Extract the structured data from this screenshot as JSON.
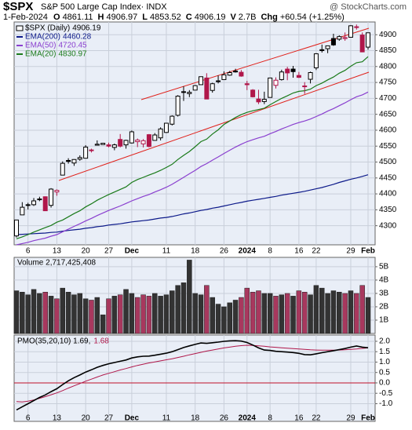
{
  "header": {
    "title": "$SPX",
    "subtitle": "S&P 500 Large Cap Index· INDX",
    "source": "@ StockCharts.com",
    "date": "1-Feb-2024",
    "stats": [
      {
        "label": "O",
        "value": "4861.11"
      },
      {
        "label": "H",
        "value": "4906.97"
      },
      {
        "label": "L",
        "value": "4853.52"
      },
      {
        "label": "C",
        "value": "4906.19"
      },
      {
        "label": "V",
        "value": "2.7B"
      },
      {
        "label": "Chg",
        "value": "+60.54 (+1.25%)"
      }
    ]
  },
  "chart_data": [
    {
      "type": "candlestick",
      "name": "$SPX (Daily)",
      "legend_value": "4906.19",
      "categories": [
        null,
        null,
        "6",
        null,
        null,
        null,
        null,
        "13",
        null,
        null,
        null,
        null,
        "20",
        null,
        null,
        null,
        "27",
        null,
        null,
        null,
        "Dec",
        null,
        null,
        null,
        null,
        null,
        "11",
        null,
        null,
        null,
        null,
        "18",
        null,
        null,
        null,
        null,
        "26",
        null,
        null,
        null,
        "2024",
        null,
        null,
        null,
        "8",
        null,
        null,
        null,
        null,
        "16",
        null,
        null,
        "22",
        null,
        null,
        null,
        null,
        null,
        "29",
        null,
        null,
        "Feb"
      ],
      "open": [
        4268,
        4334,
        4364,
        4366,
        4384,
        4391,
        4364,
        4406,
        4459,
        4505,
        4497,
        4509,
        4512,
        4538,
        4553,
        4555,
        4554,
        4546,
        4571,
        4554,
        4560,
        4564,
        4557,
        4586,
        4568,
        4576,
        4593,
        4619,
        4647,
        4721,
        4715,
        4726,
        4743,
        4764,
        4725,
        4754,
        4759,
        4773,
        4786,
        4782,
        4746,
        4726,
        4698,
        4690,
        4703,
        4741,
        4759,
        4792,
        4792,
        4772,
        4739,
        4760,
        4796,
        4853,
        4856,
        4888,
        4886,
        4888,
        4892,
        4925,
        4899,
        4861
      ],
      "high": [
        4319,
        4374,
        4372,
        4387,
        4391,
        4392,
        4418,
        4414,
        4502,
        4512,
        4509,
        4521,
        4553,
        4542,
        4568,
        4560,
        4561,
        4558,
        4588,
        4570,
        4599,
        4574,
        4572,
        4588,
        4591,
        4609,
        4623,
        4647,
        4710,
        4738,
        4726,
        4742,
        4769,
        4779,
        4749,
        4772,
        4785,
        4786,
        4793,
        4789,
        4755,
        4729,
        4727,
        4721,
        4765,
        4766,
        4790,
        4799,
        4802,
        4783,
        4751,
        4784,
        4842,
        4869,
        4866,
        4903,
        4898,
        4907,
        4930,
        4932,
        4907,
        4907
      ],
      "low": [
        4263,
        4334,
        4351,
        4362,
        4377,
        4346,
        4357,
        4394,
        4459,
        4495,
        4488,
        4504,
        4511,
        4530,
        4552,
        4554,
        4546,
        4537,
        4546,
        4542,
        4558,
        4547,
        4546,
        4546,
        4568,
        4568,
        4591,
        4615,
        4643,
        4692,
        4704,
        4726,
        4743,
        4698,
        4718,
        4747,
        4759,
        4771,
        4781,
        4768,
        4726,
        4703,
        4682,
        4682,
        4703,
        4731,
        4756,
        4757,
        4765,
        4764,
        4714,
        4747,
        4789,
        4844,
        4842,
        4865,
        4881,
        4881,
        4892,
        4916,
        4845,
        4853
      ],
      "close": [
        4318,
        4358,
        4366,
        4378,
        4383,
        4347,
        4415,
        4411,
        4496,
        4502,
        4508,
        4514,
        4547,
        4538,
        4556,
        4559,
        4550,
        4554,
        4550,
        4568,
        4595,
        4569,
        4567,
        4549,
        4585,
        4604,
        4622,
        4644,
        4707,
        4719,
        4719,
        4740,
        4768,
        4698,
        4746,
        4755,
        4774,
        4781,
        4783,
        4770,
        4743,
        4705,
        4689,
        4697,
        4764,
        4757,
        4783,
        4780,
        4784,
        4766,
        4739,
        4781,
        4840,
        4850,
        4865,
        4868,
        4894,
        4891,
        4928,
        4925,
        4846,
        4906
      ],
      "up_color": "#000000",
      "down_color": "#b0174a",
      "series": [
        {
          "name": "EMA(200)",
          "legend_value": "4460.28",
          "color": "#0d1a8a",
          "values": [
            4272,
            4273,
            4274,
            4275,
            4276,
            4277,
            4279,
            4280,
            4283,
            4285,
            4287,
            4289,
            4292,
            4294,
            4297,
            4299,
            4302,
            4304,
            4306,
            4309,
            4312,
            4314,
            4316,
            4318,
            4321,
            4324,
            4326,
            4329,
            4333,
            4337,
            4340,
            4344,
            4348,
            4351,
            4355,
            4358,
            4362,
            4366,
            4370,
            4373,
            4377,
            4380,
            4383,
            4386,
            4389,
            4392,
            4396,
            4399,
            4402,
            4405,
            4408,
            4412,
            4416,
            4420,
            4425,
            4430,
            4436,
            4441,
            4446,
            4450,
            4455,
            4460
          ]
        },
        {
          "name": "EMA(50)",
          "legend_value": "4720.45",
          "color": "#8a3fcf",
          "values": [
            4240,
            4244,
            4248,
            4253,
            4257,
            4261,
            4267,
            4272,
            4281,
            4289,
            4298,
            4306,
            4315,
            4323,
            4332,
            4340,
            4348,
            4355,
            4362,
            4370,
            4378,
            4385,
            4392,
            4398,
            4406,
            4413,
            4421,
            4430,
            4441,
            4452,
            4463,
            4474,
            4486,
            4495,
            4506,
            4516,
            4527,
            4537,
            4547,
            4556,
            4564,
            4570,
            4576,
            4581,
            4589,
            4596,
            4604,
            4611,
            4618,
            4624,
            4629,
            4635,
            4643,
            4651,
            4660,
            4668,
            4677,
            4686,
            4696,
            4705,
            4711,
            4720
          ]
        },
        {
          "name": "EMA(20)",
          "legend_value": "4830.97",
          "color": "#1a7a1a",
          "values": [
            4259,
            4265,
            4272,
            4280,
            4287,
            4294,
            4301,
            4311,
            4318,
            4328,
            4338,
            4347,
            4359,
            4369,
            4380,
            4389,
            4398,
            4406,
            4414,
            4422,
            4436,
            4445,
            4452,
            4459,
            4466,
            4474,
            4483,
            4493,
            4508,
            4521,
            4533,
            4548,
            4564,
            4572,
            4588,
            4601,
            4618,
            4629,
            4640,
            4649,
            4656,
            4661,
            4665,
            4669,
            4680,
            4690,
            4700,
            4708,
            4717,
            4722,
            4724,
            4729,
            4740,
            4748,
            4758,
            4767,
            4779,
            4788,
            4801,
            4812,
            4815,
            4831
          ]
        }
      ],
      "ylim": [
        4240,
        4940
      ],
      "yticks": [
        4300,
        4350,
        4400,
        4450,
        4500,
        4550,
        4600,
        4650,
        4700,
        4750,
        4800,
        4850,
        4900
      ],
      "grid": true
    },
    {
      "type": "bar",
      "title": "Volume 2,717,425,408",
      "values": [
        3.2,
        3.1,
        2.9,
        3.3,
        3.0,
        3.1,
        2.8,
        2.6,
        3.4,
        3.1,
        2.9,
        3.0,
        2.6,
        2.5,
        2.7,
        1.4,
        2.6,
        2.8,
        2.9,
        3.3,
        3.0,
        2.7,
        2.9,
        2.8,
        3.0,
        2.8,
        2.9,
        3.2,
        3.6,
        3.8,
        5.5,
        3.0,
        2.9,
        3.6,
        2.7,
        2.2,
        2.0,
        2.3,
        2.5,
        2.7,
        3.4,
        3.1,
        3.2,
        3.0,
        3.0,
        2.8,
        2.9,
        3.0,
        2.8,
        3.2,
        3.1,
        2.9,
        3.6,
        3.4,
        3.0,
        3.2,
        3.1,
        3.0,
        3.2,
        3.0,
        3.6,
        2.7
      ],
      "up_color": "#333333",
      "down_color": "#a8385e",
      "ylim": [
        0,
        5.7
      ],
      "yticks": [
        {
          "value": 1,
          "label": "1B"
        },
        {
          "value": 2,
          "label": "2B"
        },
        {
          "value": 3,
          "label": "3B"
        },
        {
          "value": 4,
          "label": "4B"
        },
        {
          "value": 5,
          "label": "5B"
        }
      ],
      "grid": true
    },
    {
      "type": "line",
      "series": [
        {
          "name": "PMO(35,20,10) 1.69,",
          "color": "#000000",
          "values": [
            -1.3,
            -1.15,
            -1.0,
            -0.85,
            -0.7,
            -0.58,
            -0.42,
            -0.28,
            -0.08,
            0.1,
            0.25,
            0.38,
            0.52,
            0.63,
            0.75,
            0.84,
            0.92,
            0.98,
            1.04,
            1.1,
            1.2,
            1.25,
            1.28,
            1.29,
            1.33,
            1.38,
            1.43,
            1.5,
            1.6,
            1.7,
            1.78,
            1.85,
            1.92,
            1.9,
            1.93,
            1.96,
            2.0,
            2.02,
            2.03,
            2.01,
            1.94,
            1.82,
            1.68,
            1.58,
            1.56,
            1.52,
            1.5,
            1.48,
            1.46,
            1.42,
            1.36,
            1.35,
            1.4,
            1.45,
            1.5,
            1.55,
            1.6,
            1.65,
            1.72,
            1.77,
            1.72,
            1.69
          ]
        },
        {
          "name": "1.68",
          "color": "#b0174a",
          "values": [
            -0.9,
            -0.92,
            -0.88,
            -0.82,
            -0.74,
            -0.66,
            -0.57,
            -0.48,
            -0.37,
            -0.25,
            -0.14,
            -0.03,
            0.08,
            0.18,
            0.28,
            0.38,
            0.46,
            0.54,
            0.62,
            0.69,
            0.77,
            0.84,
            0.9,
            0.96,
            1.01,
            1.06,
            1.11,
            1.16,
            1.22,
            1.28,
            1.35,
            1.41,
            1.47,
            1.53,
            1.58,
            1.63,
            1.68,
            1.72,
            1.76,
            1.79,
            1.81,
            1.8,
            1.78,
            1.76,
            1.73,
            1.71,
            1.69,
            1.67,
            1.65,
            1.63,
            1.61,
            1.59,
            1.58,
            1.57,
            1.57,
            1.57,
            1.58,
            1.59,
            1.61,
            1.63,
            1.66,
            1.68
          ]
        }
      ],
      "ylim": [
        -1.85,
        2.3
      ],
      "yticks": [
        {
          "value": -1,
          "label": "-1.0"
        },
        {
          "value": -0.5,
          "label": "-0.5"
        },
        {
          "value": 0,
          "label": "0.0"
        },
        {
          "value": 0.5,
          "label": "0.5"
        },
        {
          "value": 1,
          "label": "1.0"
        },
        {
          "value": 1.5,
          "label": "1.5"
        },
        {
          "value": 2,
          "label": "2.0"
        }
      ],
      "grid": true
    }
  ]
}
